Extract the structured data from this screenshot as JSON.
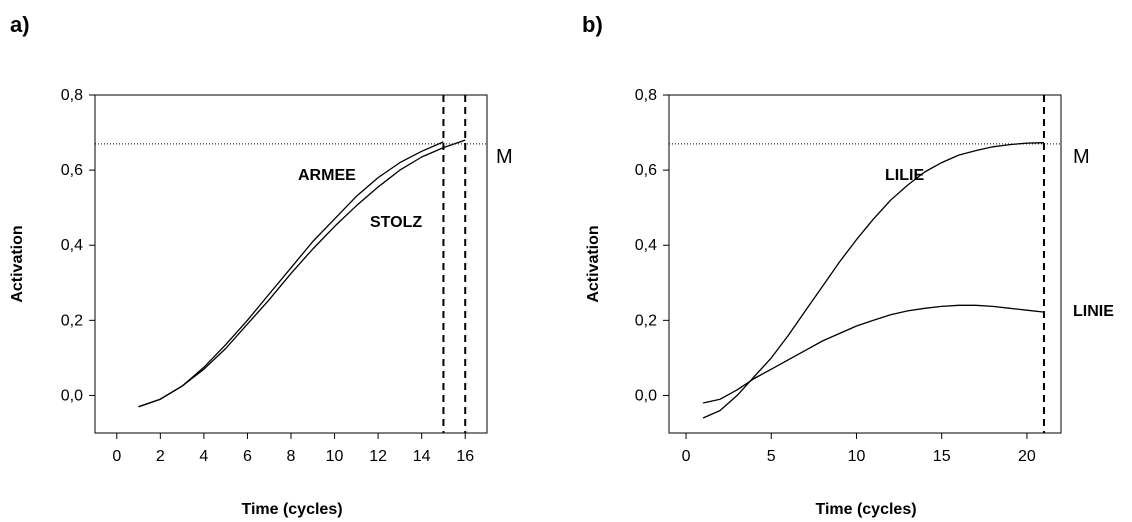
{
  "chart_data": [
    {
      "type": "line",
      "panel_label": "a)",
      "xlabel": "Time (cycles)",
      "ylabel": "Activation",
      "xlim": [
        -1,
        17
      ],
      "ylim": [
        -0.1,
        0.8
      ],
      "xticks": [
        0,
        2,
        4,
        6,
        8,
        10,
        12,
        14,
        16
      ],
      "xtick_labels": [
        "0",
        "2",
        "4",
        "6",
        "8",
        "10",
        "12",
        "14",
        "16"
      ],
      "yticks": [
        0.0,
        0.2,
        0.4,
        0.6,
        0.8
      ],
      "ytick_labels": [
        "0,0",
        "0,2",
        "0,4",
        "0,6",
        "0,8"
      ],
      "threshold": {
        "y": 0.67,
        "label": "M"
      },
      "vlines": [
        15,
        16
      ],
      "series": [
        {
          "name": "ARMEE",
          "x": [
            1,
            2,
            3,
            4,
            5,
            6,
            7,
            8,
            9,
            10,
            11,
            12,
            13,
            14,
            15
          ],
          "y": [
            -0.03,
            -0.01,
            0.025,
            0.075,
            0.135,
            0.2,
            0.27,
            0.34,
            0.41,
            0.47,
            0.53,
            0.58,
            0.62,
            0.65,
            0.675
          ]
        },
        {
          "name": "STOLZ",
          "x": [
            1,
            2,
            3,
            4,
            5,
            6,
            7,
            8,
            9,
            10,
            11,
            12,
            13,
            14,
            15,
            16
          ],
          "y": [
            -0.03,
            -0.01,
            0.025,
            0.07,
            0.125,
            0.19,
            0.255,
            0.325,
            0.39,
            0.45,
            0.505,
            0.555,
            0.6,
            0.635,
            0.66,
            0.68
          ]
        }
      ]
    },
    {
      "type": "line",
      "panel_label": "b)",
      "xlabel": "Time (cycles)",
      "ylabel": "Activation",
      "xlim": [
        -1,
        22
      ],
      "ylim": [
        -0.1,
        0.8
      ],
      "xticks": [
        0,
        5,
        10,
        15,
        20
      ],
      "xtick_labels": [
        "0",
        "5",
        "10",
        "15",
        "20"
      ],
      "yticks": [
        0.0,
        0.2,
        0.4,
        0.6,
        0.8
      ],
      "ytick_labels": [
        "0,0",
        "0,2",
        "0,4",
        "0,6",
        "0,8"
      ],
      "threshold": {
        "y": 0.67,
        "label": "M"
      },
      "vlines": [
        21
      ],
      "series": [
        {
          "name": "LILIE",
          "x": [
            1,
            2,
            3,
            4,
            5,
            6,
            7,
            8,
            9,
            10,
            11,
            12,
            13,
            14,
            15,
            16,
            17,
            18,
            19,
            20,
            21
          ],
          "y": [
            -0.06,
            -0.04,
            0.0,
            0.05,
            0.1,
            0.16,
            0.225,
            0.29,
            0.355,
            0.415,
            0.47,
            0.52,
            0.56,
            0.595,
            0.62,
            0.64,
            0.652,
            0.662,
            0.668,
            0.672,
            0.673
          ]
        },
        {
          "name": "LINIE",
          "x": [
            1,
            2,
            3,
            4,
            5,
            6,
            7,
            8,
            9,
            10,
            11,
            12,
            13,
            14,
            15,
            16,
            17,
            18,
            19,
            20,
            21
          ],
          "y": [
            -0.02,
            -0.01,
            0.015,
            0.045,
            0.07,
            0.095,
            0.12,
            0.145,
            0.165,
            0.185,
            0.2,
            0.215,
            0.225,
            0.232,
            0.237,
            0.24,
            0.24,
            0.237,
            0.232,
            0.227,
            0.222
          ]
        }
      ]
    }
  ]
}
